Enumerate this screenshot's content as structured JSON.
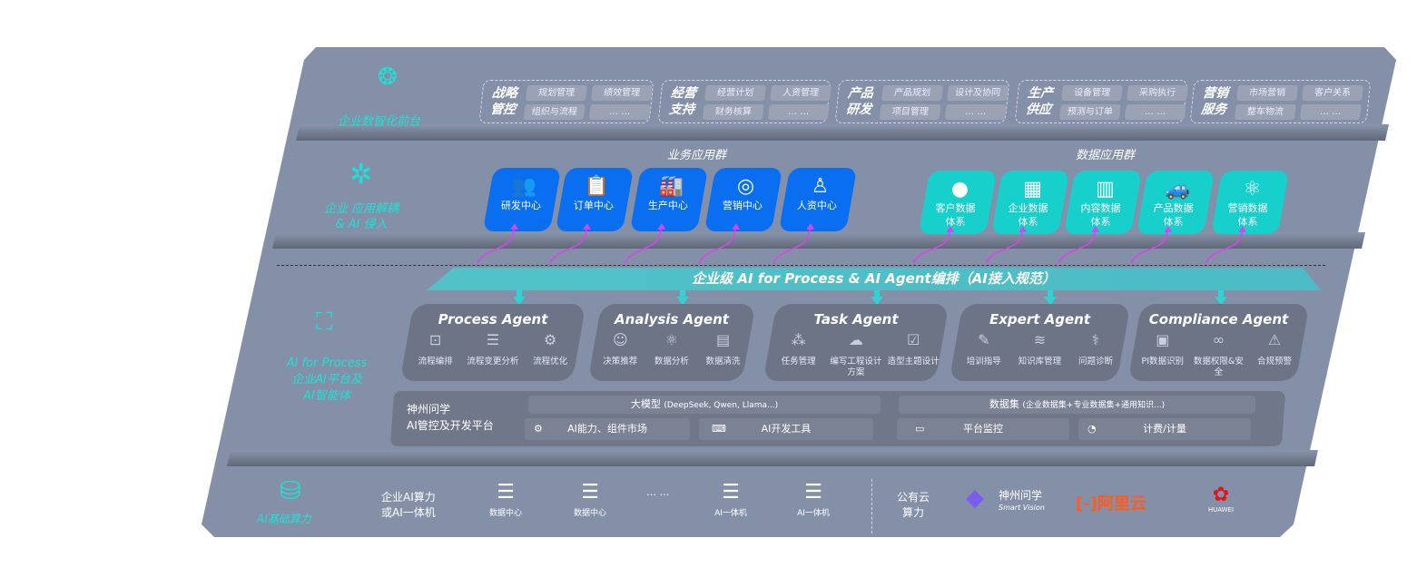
{
  "front": {
    "label": "企业数智化前台",
    "icon": "brain-icon",
    "groups": [
      {
        "title": "战略管控",
        "items": [
          "规划管理",
          "绩效管理",
          "组织与流程",
          "… …"
        ]
      },
      {
        "title": "经营支持",
        "items": [
          "经营计划",
          "人资管理",
          "财务核算",
          "… …"
        ]
      },
      {
        "title": "产品研发",
        "items": [
          "产品规划",
          "设计及协同",
          "项目管理",
          "… …"
        ]
      },
      {
        "title": "生产供应",
        "items": [
          "设备管理",
          "采购执行",
          "预测与订单",
          "… …"
        ]
      },
      {
        "title": "营销服务",
        "items": [
          "市场营销",
          "客户关系",
          "整车物流",
          "… …"
        ]
      }
    ]
  },
  "apps": {
    "label1": "企业 应用解耦",
    "label2": "& AI 侵入",
    "icon": "molecule-icon",
    "business_title": "业务应用群",
    "data_title": "数据应用群",
    "business": [
      {
        "label": "研发中心",
        "icon": "users-icon",
        "glyph": "👥"
      },
      {
        "label": "订单中心",
        "icon": "clipboard-icon",
        "glyph": "📋"
      },
      {
        "label": "生产中心",
        "icon": "factory-icon",
        "glyph": "🏭"
      },
      {
        "label": "营销中心",
        "icon": "target-icon",
        "glyph": "◎"
      },
      {
        "label": "人资中心",
        "icon": "person-icon",
        "glyph": "♙"
      }
    ],
    "data": [
      {
        "label": "客户数据体系",
        "icon": "user-icon",
        "glyph": "●"
      },
      {
        "label": "企业数据体系",
        "icon": "building-icon",
        "glyph": "▦"
      },
      {
        "label": "内容数据体系",
        "icon": "books-icon",
        "glyph": "▥"
      },
      {
        "label": "产品数据体系",
        "icon": "car-icon",
        "glyph": "🚙"
      },
      {
        "label": "营销数据体系",
        "icon": "atom-icon",
        "glyph": "⚛"
      }
    ]
  },
  "orchestration": {
    "title": "企业级 AI for Process & AI Agent编排（AI接入规范）"
  },
  "ai": {
    "label_en": "AI for Process",
    "label1": "企业AI平台及",
    "label2": "AI智能体",
    "icon": "face-scan-icon",
    "agents": [
      {
        "title": "Process Agent",
        "items": [
          {
            "label": "流程编排",
            "icon": "chart-icon",
            "glyph": "⊡"
          },
          {
            "label": "流程变更分析",
            "icon": "list-icon",
            "glyph": "☰"
          },
          {
            "label": "流程优化",
            "icon": "optimize-icon",
            "glyph": "⚙"
          }
        ]
      },
      {
        "title": "Analysis Agent",
        "items": [
          {
            "label": "决策推荐",
            "icon": "head-icon",
            "glyph": "☺"
          },
          {
            "label": "数据分析",
            "icon": "atom-icon",
            "glyph": "⚛"
          },
          {
            "label": "数据清洗",
            "icon": "document-icon",
            "glyph": "▤"
          }
        ]
      },
      {
        "title": "Task Agent",
        "items": [
          {
            "label": "任务管理",
            "icon": "network-icon",
            "glyph": "⁂"
          },
          {
            "label": "编写工程设计方案",
            "icon": "cloud-icon",
            "glyph": "☁"
          },
          {
            "label": "造型主题设计",
            "icon": "checklist-icon",
            "glyph": "☑"
          }
        ]
      },
      {
        "title": "Expert Agent",
        "items": [
          {
            "label": "培训指导",
            "icon": "training-icon",
            "glyph": "✎"
          },
          {
            "label": "知识库管理",
            "icon": "layers-icon",
            "glyph": "≋"
          },
          {
            "label": "问题诊断",
            "icon": "diagnose-icon",
            "glyph": "⚕"
          }
        ]
      },
      {
        "title": "Compliance Agent",
        "items": [
          {
            "label": "PI数据识别",
            "icon": "id-card-icon",
            "glyph": "▣"
          },
          {
            "label": "数据权限&安全",
            "icon": "link-icon",
            "glyph": "∞"
          },
          {
            "label": "合规预警",
            "icon": "alert-icon",
            "glyph": "⚠"
          }
        ]
      }
    ],
    "platform": {
      "name1": "神州问学",
      "name2": "AI管控及开发平台",
      "model": "大模型",
      "model_note": "(DeepSeek, Qwen, Llama...)",
      "dataset": "数据集",
      "dataset_note": "(企业数据集+专业数据集+通用知识...)",
      "market": "AI能力、组件市场",
      "devtools": "AI开发工具",
      "monitor": "平台监控",
      "billing": "计费/计量"
    }
  },
  "infra": {
    "label": "AI基础算力",
    "icon": "database-icon",
    "compute1": "企业AI算力",
    "compute2": "或AI一体机",
    "servers": [
      {
        "label": "数据中心"
      },
      {
        "label": "数据中心"
      },
      {
        "label": ""
      },
      {
        "label": "AI一体机"
      },
      {
        "label": "AI一体机"
      }
    ],
    "ellipsis": "… …",
    "public1": "公有云",
    "public2": "算力",
    "vendor1": "神州问学",
    "vendor1_sub": "Smart Vision",
    "vendor2": "阿里云",
    "vendor3": "HUAWEI"
  },
  "colors": {
    "panel": "#8490a8",
    "business": "#0a6ef0",
    "data": "#17cfcb",
    "accent": "#1fe0d6",
    "arrow": "#e040f0",
    "aliyun": "#ff5a1f",
    "huawei": "#e0151c"
  }
}
